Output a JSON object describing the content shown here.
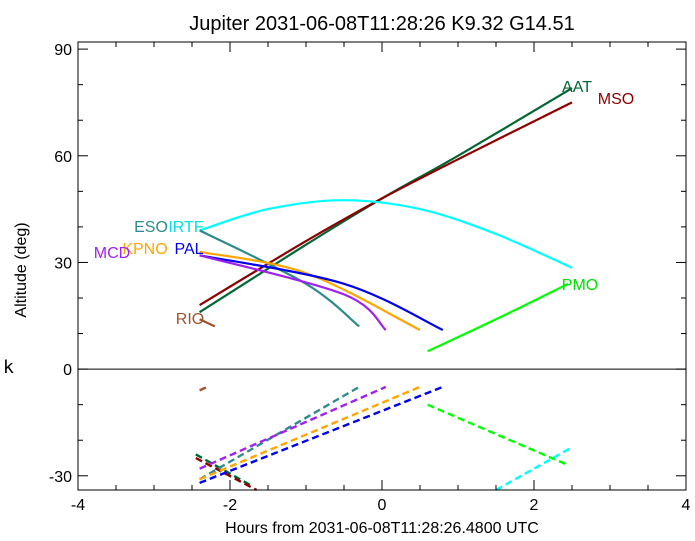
{
  "chart_data": {
    "type": "line",
    "title": "Jupiter 2031-06-08T11:28:26  K9.32  G14.51",
    "xlabel": "Hours from 2031-06-08T11:28:26.4800 UTC",
    "ylabel": "Altitude (deg)",
    "xlim": [
      -4,
      4
    ],
    "ylim": [
      -34,
      92
    ],
    "x_ticks": [
      -4,
      -2,
      0,
      2,
      4
    ],
    "y_ticks": [
      -30,
      0,
      30,
      60,
      90
    ],
    "side_label": "k",
    "grid": false,
    "series": [
      {
        "name": "AAT",
        "color": "#006633",
        "label_color": "#006633",
        "x": [
          -2.4,
          -1.0,
          0.0,
          1.0,
          2.5
        ],
        "y": [
          16,
          35,
          48,
          60,
          79
        ]
      },
      {
        "name": "MSO",
        "color": "#8B0000",
        "label_color": "#8B0000",
        "x": [
          -2.4,
          -1.0,
          0.0,
          1.0,
          2.5
        ],
        "y": [
          18,
          36,
          48,
          59,
          75
        ]
      },
      {
        "name": "IRTF",
        "color": "#00FFFF",
        "label_color": "#00E0E0",
        "x": [
          -2.4,
          -1.5,
          -0.5,
          0.5,
          1.5,
          2.5
        ],
        "y": [
          39,
          45,
          47.5,
          45,
          38,
          28.5
        ]
      },
      {
        "name": "ESO",
        "color": "#2E8B8B",
        "label_color": "#2E8B8B",
        "x": [
          -2.4,
          -1.0,
          -0.3
        ],
        "y": [
          39,
          24,
          12
        ]
      },
      {
        "name": "KPNO",
        "color": "#FFA500",
        "label_color": "#FFA500",
        "x": [
          -2.4,
          -1.0,
          0.5
        ],
        "y": [
          33,
          27,
          11
        ]
      },
      {
        "name": "PAL",
        "color": "#0000EE",
        "label_color": "#0000EE",
        "x": [
          -2.4,
          -0.5,
          0.8
        ],
        "y": [
          32,
          24,
          11
        ]
      },
      {
        "name": "MCD",
        "color": "#A020F0",
        "label_color": "#A020F0",
        "x": [
          -2.4,
          -0.5,
          0.05
        ],
        "y": [
          32,
          21,
          11
        ]
      },
      {
        "name": "PMO",
        "color": "#00FF00",
        "label_color": "#00E000",
        "x": [
          0.6,
          1.5,
          2.45
        ],
        "y": [
          5,
          14,
          24
        ]
      },
      {
        "name": "RIO",
        "color": "#A0522D",
        "label_color": "#A0522D",
        "x": [
          -2.4,
          -2.2
        ],
        "y": [
          14,
          12
        ]
      }
    ],
    "below_horizon": [
      {
        "name": "AAT",
        "color": "#006633",
        "x": [
          -2.45,
          -1.7
        ],
        "y": [
          -24,
          -33
        ]
      },
      {
        "name": "MSO",
        "color": "#8B0000",
        "x": [
          -2.45,
          -1.65
        ],
        "y": [
          -25,
          -34
        ]
      },
      {
        "name": "RIO",
        "color": "#A0522D",
        "x": [
          -2.4,
          -2.3
        ],
        "y": [
          -6,
          -5
        ]
      },
      {
        "name": "ESO",
        "color": "#2E8B8B",
        "x": [
          -2.4,
          -0.3
        ],
        "y": [
          -31,
          -5
        ]
      },
      {
        "name": "MCD",
        "color": "#A020F0",
        "x": [
          -2.4,
          0.05
        ],
        "y": [
          -28,
          -5
        ]
      },
      {
        "name": "KPNO",
        "color": "#FFA500",
        "x": [
          -2.4,
          0.5
        ],
        "y": [
          -31,
          -5
        ]
      },
      {
        "name": "PAL",
        "color": "#0000EE",
        "x": [
          -2.4,
          0.8
        ],
        "y": [
          -32,
          -5
        ]
      },
      {
        "name": "PMO",
        "color": "#00FF00",
        "x": [
          0.6,
          2.45
        ],
        "y": [
          -10,
          -27
        ]
      },
      {
        "name": "IRTF",
        "color": "#00FFFF",
        "x": [
          1.5,
          2.5
        ],
        "y": [
          -34,
          -22
        ]
      }
    ]
  }
}
